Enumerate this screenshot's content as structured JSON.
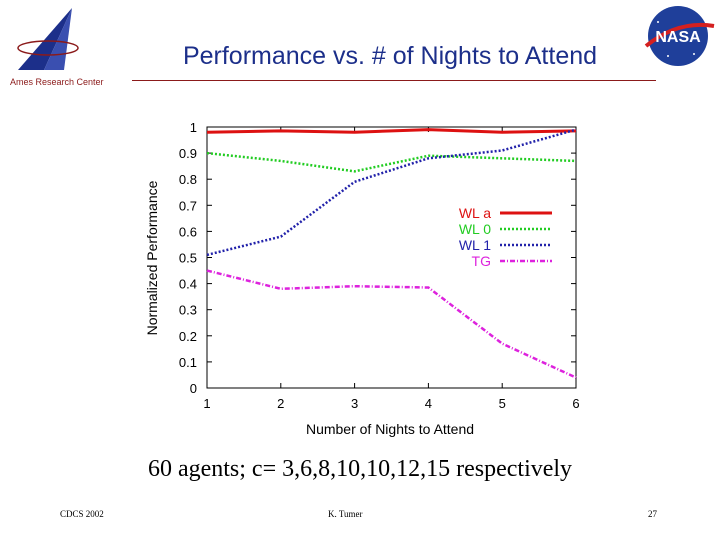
{
  "slide": {
    "title": "Performance vs. # of Nights to Attend",
    "org": "Ames Research Center",
    "caption": "60 agents; c= 3,6,8,10,10,12,15 respectively",
    "footer_left": "CDCS 2002",
    "footer_center": "K. Tumer",
    "page_number": "27"
  },
  "logos": {
    "left": "ames-logo-icon",
    "right": "nasa-meatball-icon"
  },
  "chart_data": {
    "type": "line",
    "x": [
      1,
      2,
      3,
      4,
      5,
      6
    ],
    "xlabel": "Number of Nights to Attend",
    "ylabel": "Normalized Performance",
    "xlim": [
      1,
      6
    ],
    "ylim": [
      0,
      1
    ],
    "xticks": [
      "1",
      "2",
      "3",
      "4",
      "5",
      "6"
    ],
    "yticks": [
      "0",
      "0.1",
      "0.2",
      "0.3",
      "0.4",
      "0.5",
      "0.6",
      "0.7",
      "0.8",
      "0.9",
      "1"
    ],
    "grid": false,
    "legend_position": "right",
    "series": [
      {
        "name": "WL a",
        "values": [
          0.98,
          0.985,
          0.98,
          0.99,
          0.98,
          0.985
        ],
        "color": "#dd1111",
        "style": "solid"
      },
      {
        "name": "WL 0",
        "values": [
          0.9,
          0.87,
          0.83,
          0.89,
          0.88,
          0.87
        ],
        "color": "#22cc22",
        "style": "dotted"
      },
      {
        "name": "WL 1",
        "values": [
          0.51,
          0.58,
          0.79,
          0.88,
          0.91,
          0.99
        ],
        "color": "#2222aa",
        "style": "dotted"
      },
      {
        "name": "TG",
        "values": [
          0.45,
          0.38,
          0.39,
          0.385,
          0.17,
          0.04
        ],
        "color": "#dd22dd",
        "style": "dashdot"
      }
    ]
  }
}
